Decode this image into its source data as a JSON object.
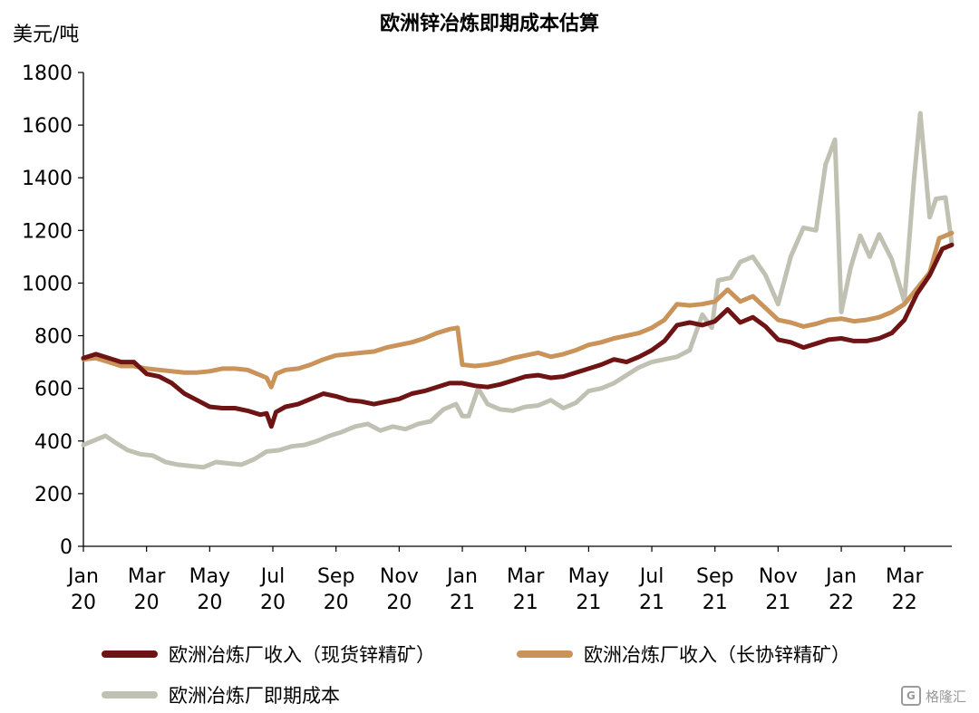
{
  "chart_data": {
    "type": "line",
    "title": "欧洲锌冶炼即期成本估算",
    "ylabel": "美元/吨",
    "ylim": [
      0,
      1800
    ],
    "yticks": [
      0,
      200,
      400,
      600,
      800,
      1000,
      1200,
      1400,
      1600,
      1800
    ],
    "xlabels": [
      {
        "month": "Jan",
        "year": "20",
        "x": 0
      },
      {
        "month": "Mar",
        "year": "20",
        "x": 2
      },
      {
        "month": "May",
        "year": "20",
        "x": 4
      },
      {
        "month": "Jul",
        "year": "20",
        "x": 6
      },
      {
        "month": "Sep",
        "year": "20",
        "x": 8
      },
      {
        "month": "Nov",
        "year": "20",
        "x": 10
      },
      {
        "month": "Jan",
        "year": "21",
        "x": 12
      },
      {
        "month": "Mar",
        "year": "21",
        "x": 14
      },
      {
        "month": "May",
        "year": "21",
        "x": 16
      },
      {
        "month": "Jul",
        "year": "21",
        "x": 18
      },
      {
        "month": "Sep",
        "year": "21",
        "x": 20
      },
      {
        "month": "Nov",
        "year": "21",
        "x": 22
      },
      {
        "month": "Jan",
        "year": "22",
        "x": 24
      },
      {
        "month": "Mar",
        "year": "22",
        "x": 26
      }
    ],
    "xlim": [
      0,
      27.5
    ],
    "grid": false,
    "legend_position": "bottom",
    "series": [
      {
        "name": "欧洲冶炼厂收入（现货锌精矿）",
        "color": "#6e1414",
        "points": [
          [
            0,
            715
          ],
          [
            0.4,
            730
          ],
          [
            0.8,
            715
          ],
          [
            1.2,
            700
          ],
          [
            1.6,
            700
          ],
          [
            2,
            655
          ],
          [
            2.4,
            645
          ],
          [
            2.8,
            620
          ],
          [
            3.2,
            580
          ],
          [
            3.6,
            555
          ],
          [
            4,
            530
          ],
          [
            4.4,
            525
          ],
          [
            4.8,
            525
          ],
          [
            5.2,
            515
          ],
          [
            5.6,
            500
          ],
          [
            5.8,
            505
          ],
          [
            5.95,
            455
          ],
          [
            6.1,
            510
          ],
          [
            6.4,
            530
          ],
          [
            6.8,
            540
          ],
          [
            7.2,
            560
          ],
          [
            7.6,
            580
          ],
          [
            8,
            570
          ],
          [
            8.4,
            555
          ],
          [
            8.8,
            550
          ],
          [
            9.2,
            540
          ],
          [
            9.6,
            550
          ],
          [
            10,
            560
          ],
          [
            10.4,
            580
          ],
          [
            10.8,
            590
          ],
          [
            11.2,
            605
          ],
          [
            11.6,
            620
          ],
          [
            12,
            620
          ],
          [
            12.4,
            610
          ],
          [
            12.8,
            605
          ],
          [
            13.2,
            615
          ],
          [
            13.6,
            630
          ],
          [
            14,
            645
          ],
          [
            14.4,
            650
          ],
          [
            14.8,
            640
          ],
          [
            15.2,
            645
          ],
          [
            15.6,
            660
          ],
          [
            16,
            675
          ],
          [
            16.4,
            690
          ],
          [
            16.8,
            710
          ],
          [
            17.2,
            700
          ],
          [
            17.6,
            720
          ],
          [
            18,
            745
          ],
          [
            18.4,
            780
          ],
          [
            18.8,
            840
          ],
          [
            19.2,
            850
          ],
          [
            19.6,
            840
          ],
          [
            20,
            855
          ],
          [
            20.4,
            900
          ],
          [
            20.8,
            850
          ],
          [
            21.2,
            870
          ],
          [
            21.6,
            835
          ],
          [
            22,
            785
          ],
          [
            22.4,
            775
          ],
          [
            22.8,
            755
          ],
          [
            23.2,
            770
          ],
          [
            23.6,
            785
          ],
          [
            24,
            790
          ],
          [
            24.4,
            780
          ],
          [
            24.8,
            780
          ],
          [
            25.2,
            790
          ],
          [
            25.6,
            810
          ],
          [
            26,
            860
          ],
          [
            26.4,
            960
          ],
          [
            26.8,
            1030
          ],
          [
            27.2,
            1130
          ],
          [
            27.5,
            1145
          ]
        ]
      },
      {
        "name": "欧洲冶炼厂收入（长协锌精矿）",
        "color": "#c9935a",
        "points": [
          [
            0,
            710
          ],
          [
            0.4,
            715
          ],
          [
            0.8,
            700
          ],
          [
            1.2,
            685
          ],
          [
            1.6,
            685
          ],
          [
            2,
            675
          ],
          [
            2.4,
            670
          ],
          [
            2.8,
            665
          ],
          [
            3.2,
            660
          ],
          [
            3.6,
            660
          ],
          [
            4,
            665
          ],
          [
            4.4,
            675
          ],
          [
            4.8,
            675
          ],
          [
            5.2,
            670
          ],
          [
            5.6,
            650
          ],
          [
            5.8,
            640
          ],
          [
            5.95,
            605
          ],
          [
            6.1,
            655
          ],
          [
            6.4,
            670
          ],
          [
            6.8,
            675
          ],
          [
            7.2,
            690
          ],
          [
            7.6,
            710
          ],
          [
            8,
            725
          ],
          [
            8.4,
            730
          ],
          [
            8.8,
            735
          ],
          [
            9.2,
            740
          ],
          [
            9.6,
            755
          ],
          [
            10,
            765
          ],
          [
            10.4,
            775
          ],
          [
            10.8,
            790
          ],
          [
            11.2,
            810
          ],
          [
            11.6,
            825
          ],
          [
            11.85,
            830
          ],
          [
            12,
            690
          ],
          [
            12.4,
            685
          ],
          [
            12.8,
            690
          ],
          [
            13.2,
            700
          ],
          [
            13.6,
            715
          ],
          [
            14,
            725
          ],
          [
            14.4,
            735
          ],
          [
            14.8,
            720
          ],
          [
            15.2,
            730
          ],
          [
            15.6,
            745
          ],
          [
            16,
            765
          ],
          [
            16.4,
            775
          ],
          [
            16.8,
            790
          ],
          [
            17.2,
            800
          ],
          [
            17.6,
            810
          ],
          [
            18,
            830
          ],
          [
            18.4,
            860
          ],
          [
            18.8,
            920
          ],
          [
            19.2,
            915
          ],
          [
            19.6,
            920
          ],
          [
            20,
            930
          ],
          [
            20.4,
            975
          ],
          [
            20.8,
            930
          ],
          [
            21.2,
            950
          ],
          [
            21.6,
            905
          ],
          [
            22,
            860
          ],
          [
            22.4,
            850
          ],
          [
            22.8,
            835
          ],
          [
            23.2,
            845
          ],
          [
            23.6,
            860
          ],
          [
            24,
            865
          ],
          [
            24.4,
            855
          ],
          [
            24.8,
            860
          ],
          [
            25.2,
            870
          ],
          [
            25.6,
            890
          ],
          [
            26,
            920
          ],
          [
            26.4,
            980
          ],
          [
            26.8,
            1040
          ],
          [
            27.1,
            1170
          ],
          [
            27.5,
            1190
          ]
        ]
      },
      {
        "name": "欧洲冶炼厂即期成本",
        "color": "#c1c1b3",
        "points": [
          [
            0,
            385
          ],
          [
            0.4,
            405
          ],
          [
            0.7,
            420
          ],
          [
            1,
            395
          ],
          [
            1.4,
            365
          ],
          [
            1.8,
            350
          ],
          [
            2.2,
            345
          ],
          [
            2.6,
            320
          ],
          [
            3,
            310
          ],
          [
            3.4,
            305
          ],
          [
            3.8,
            300
          ],
          [
            4.2,
            320
          ],
          [
            4.6,
            315
          ],
          [
            5,
            310
          ],
          [
            5.4,
            330
          ],
          [
            5.8,
            360
          ],
          [
            6.2,
            365
          ],
          [
            6.6,
            380
          ],
          [
            7,
            385
          ],
          [
            7.4,
            400
          ],
          [
            7.8,
            420
          ],
          [
            8.2,
            435
          ],
          [
            8.6,
            455
          ],
          [
            9,
            465
          ],
          [
            9.4,
            440
          ],
          [
            9.8,
            455
          ],
          [
            10.2,
            445
          ],
          [
            10.6,
            465
          ],
          [
            11,
            475
          ],
          [
            11.4,
            520
          ],
          [
            11.8,
            540
          ],
          [
            12,
            495
          ],
          [
            12.2,
            495
          ],
          [
            12.5,
            600
          ],
          [
            12.8,
            540
          ],
          [
            13.2,
            520
          ],
          [
            13.6,
            515
          ],
          [
            14,
            530
          ],
          [
            14.4,
            535
          ],
          [
            14.8,
            555
          ],
          [
            15.2,
            525
          ],
          [
            15.6,
            545
          ],
          [
            16,
            590
          ],
          [
            16.4,
            600
          ],
          [
            16.8,
            620
          ],
          [
            17.2,
            650
          ],
          [
            17.6,
            680
          ],
          [
            18,
            700
          ],
          [
            18.4,
            710
          ],
          [
            18.8,
            720
          ],
          [
            19.2,
            745
          ],
          [
            19.6,
            880
          ],
          [
            19.9,
            830
          ],
          [
            20.1,
            1010
          ],
          [
            20.5,
            1020
          ],
          [
            20.8,
            1080
          ],
          [
            21.2,
            1100
          ],
          [
            21.6,
            1030
          ],
          [
            22,
            920
          ],
          [
            22.4,
            1100
          ],
          [
            22.8,
            1210
          ],
          [
            23.2,
            1200
          ],
          [
            23.5,
            1450
          ],
          [
            23.8,
            1545
          ],
          [
            24,
            890
          ],
          [
            24.3,
            1060
          ],
          [
            24.6,
            1180
          ],
          [
            24.9,
            1100
          ],
          [
            25.2,
            1185
          ],
          [
            25.6,
            1090
          ],
          [
            26,
            930
          ],
          [
            26.3,
            1390
          ],
          [
            26.5,
            1645
          ],
          [
            26.8,
            1250
          ],
          [
            27,
            1320
          ],
          [
            27.3,
            1325
          ],
          [
            27.5,
            1150
          ]
        ]
      }
    ]
  },
  "watermark": {
    "text": "格隆汇",
    "logo": "G"
  }
}
